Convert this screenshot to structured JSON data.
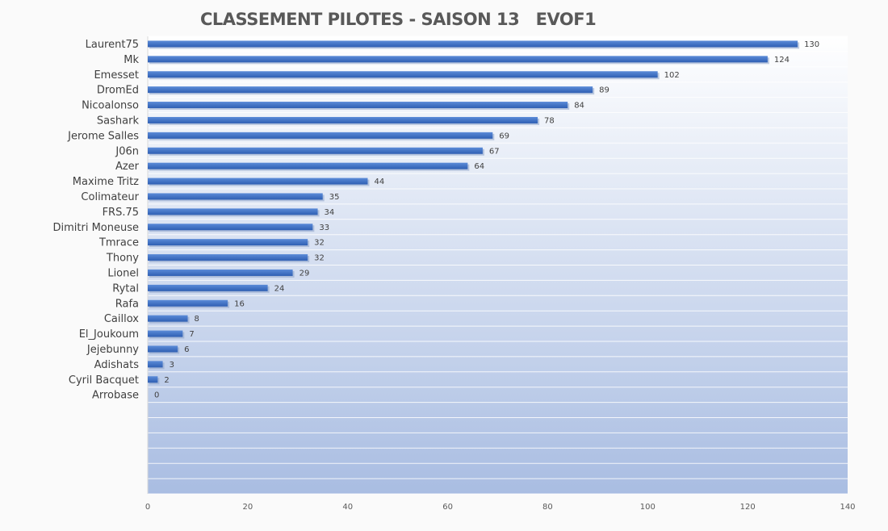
{
  "chart_data": {
    "type": "bar",
    "orientation": "horizontal",
    "title": "CLASSEMENT PILOTES - SAISON 13   EVOF1",
    "xlabel": "",
    "ylabel": "",
    "xlim": [
      0,
      140
    ],
    "x_ticks": [
      0,
      20,
      40,
      60,
      80,
      100,
      120,
      140
    ],
    "grid": true,
    "legend": "none",
    "bar_color": "#4472c4",
    "categories": [
      "Laurent75",
      "Mk",
      "Emesset",
      "DromEd",
      "Nicoalonso",
      "Sashark",
      "Jerome Salles",
      "J06n",
      "Azer",
      "Maxime Tritz",
      "Colimateur",
      "FRS.75",
      "Dimitri Moneuse",
      "Tmrace",
      "Thony",
      "Lionel",
      "Rytal",
      "Rafa",
      "Caillox",
      "El_Joukoum",
      "Jejebunny",
      "Adishats",
      "Cyril Bacquet",
      "Arrobase",
      "",
      "",
      "",
      "",
      "",
      ""
    ],
    "values": [
      130,
      124,
      102,
      89,
      84,
      78,
      69,
      67,
      64,
      44,
      35,
      34,
      33,
      32,
      32,
      29,
      24,
      16,
      8,
      7,
      6,
      3,
      2,
      0,
      null,
      null,
      null,
      null,
      null,
      null
    ]
  }
}
